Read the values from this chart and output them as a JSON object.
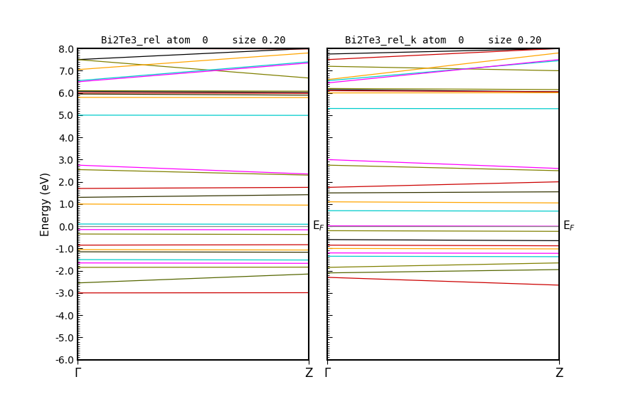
{
  "title_left": "Bi2Te3_rel atom  0    size 0.20",
  "title_right": "Bi2Te3_rel_k atom  0    size 0.20",
  "ylabel": "Energy (eV)",
  "ef_label": "EF",
  "ylim": [
    -6.0,
    8.0
  ],
  "xlim": [
    0.0,
    1.0
  ],
  "yticks": [
    -6.0,
    -5.0,
    -4.0,
    -3.0,
    -2.0,
    -1.0,
    0.0,
    1.0,
    2.0,
    3.0,
    4.0,
    5.0,
    6.0,
    7.0,
    8.0
  ],
  "background": "#ffffff",
  "n_points": 100
}
